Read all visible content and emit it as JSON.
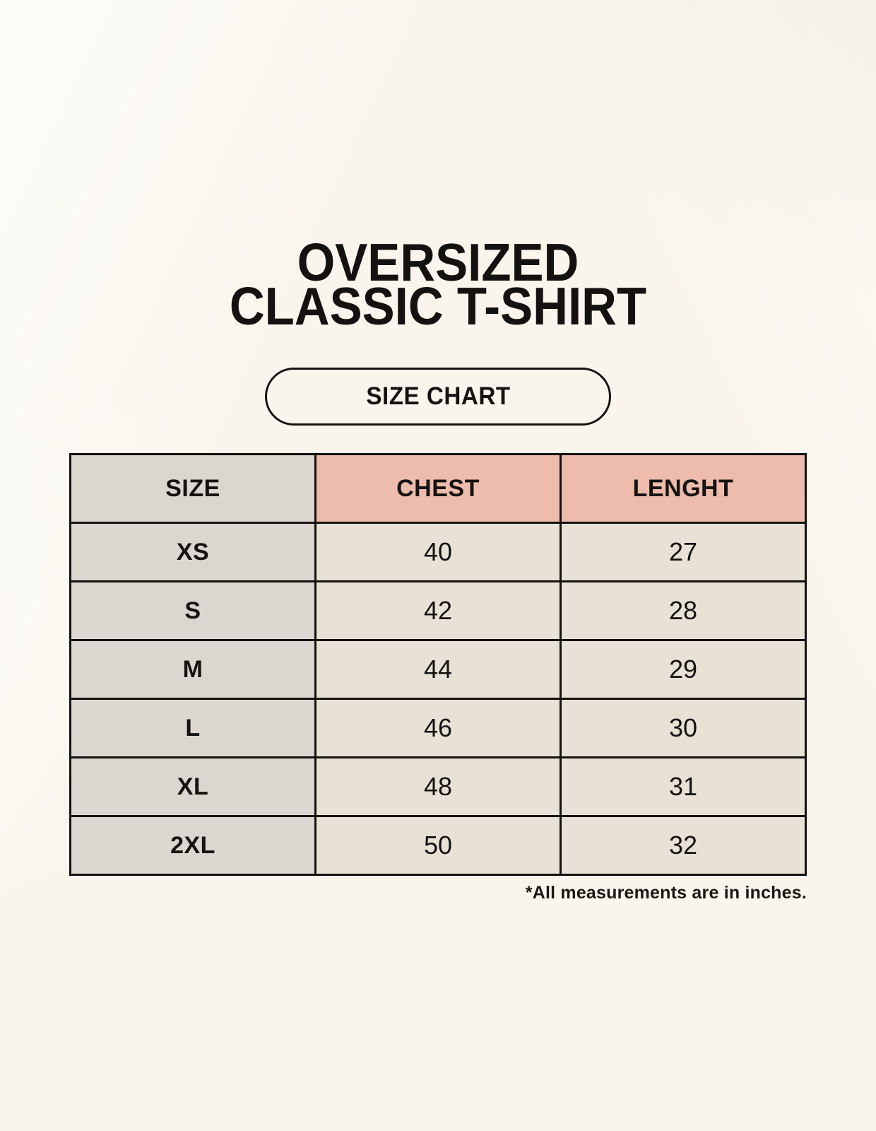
{
  "header": {
    "title_line1": "OVERSIZED",
    "title_line2": "CLASSIC T-SHIRT",
    "button_label": "SIZE CHART"
  },
  "chart_data": {
    "type": "table",
    "title": "OVERSIZED CLASSIC T-SHIRT",
    "columns": [
      "SIZE",
      "CHEST",
      "LENGHT"
    ],
    "rows": [
      [
        "XS",
        40,
        27
      ],
      [
        "S",
        42,
        28
      ],
      [
        "M",
        44,
        29
      ],
      [
        "L",
        46,
        30
      ],
      [
        "XL",
        48,
        31
      ],
      [
        "2XL",
        50,
        32
      ]
    ]
  },
  "footnote": "*All measurements are in inches.",
  "colors": {
    "background": "#f9f5ec",
    "header_accent_pink": "#edbcad",
    "size_column_gray": "#dcd6d0",
    "data_cell_cream": "#e8e1d6",
    "border_and_text": "#131110"
  }
}
